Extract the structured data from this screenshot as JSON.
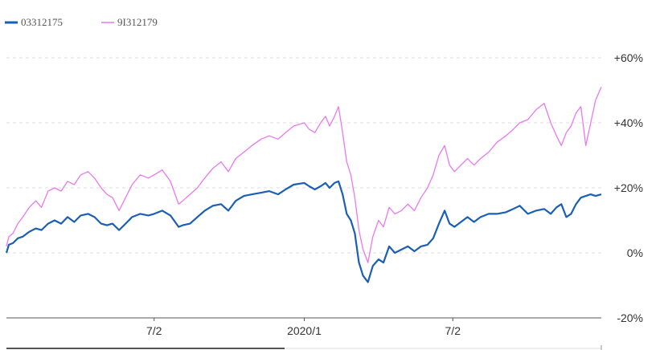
{
  "chart_data": {
    "type": "line",
    "title": "",
    "xlabel": "",
    "ylabel": "",
    "legend_position": "top-left",
    "grid": true,
    "y_unit": "percent",
    "ylim": [
      -20,
      60
    ],
    "y_ticks": [
      {
        "value": 60,
        "label": "+60%"
      },
      {
        "value": 40,
        "label": "+40%"
      },
      {
        "value": 20,
        "label": "+20%"
      },
      {
        "value": 0,
        "label": "0%"
      },
      {
        "value": -20,
        "label": "-20%"
      }
    ],
    "x_range": [
      "2019-01-02",
      "2020-12-31"
    ],
    "x_ticks": [
      {
        "date": "2019-07-02",
        "label": "7/2"
      },
      {
        "date": "2020-01-02",
        "label": "2020/1"
      },
      {
        "date": "2020-07-02",
        "label": "7/2"
      }
    ],
    "series": [
      {
        "name": "03312175",
        "color": "#1a5fb4",
        "points": [
          [
            "2019-01-02",
            0
          ],
          [
            "2019-01-05",
            2.5
          ],
          [
            "2019-01-10",
            3
          ],
          [
            "2019-01-16",
            4.5
          ],
          [
            "2019-01-22",
            5
          ],
          [
            "2019-01-30",
            6.5
          ],
          [
            "2019-02-07",
            7.5
          ],
          [
            "2019-02-14",
            7
          ],
          [
            "2019-02-22",
            9
          ],
          [
            "2019-03-02",
            10
          ],
          [
            "2019-03-10",
            9
          ],
          [
            "2019-03-18",
            11
          ],
          [
            "2019-03-26",
            9.5
          ],
          [
            "2019-04-03",
            11.5
          ],
          [
            "2019-04-12",
            12
          ],
          [
            "2019-04-20",
            11
          ],
          [
            "2019-04-28",
            9
          ],
          [
            "2019-05-05",
            8.5
          ],
          [
            "2019-05-12",
            9
          ],
          [
            "2019-05-20",
            7
          ],
          [
            "2019-05-28",
            9
          ],
          [
            "2019-06-05",
            11
          ],
          [
            "2019-06-15",
            12
          ],
          [
            "2019-06-25",
            11.5
          ],
          [
            "2019-07-02",
            12
          ],
          [
            "2019-07-12",
            13
          ],
          [
            "2019-07-22",
            11.5
          ],
          [
            "2019-08-01",
            8
          ],
          [
            "2019-08-06",
            8.5
          ],
          [
            "2019-08-15",
            9
          ],
          [
            "2019-08-24",
            11
          ],
          [
            "2019-09-02",
            13
          ],
          [
            "2019-09-12",
            14.5
          ],
          [
            "2019-09-22",
            15
          ],
          [
            "2019-10-01",
            13
          ],
          [
            "2019-10-10",
            16
          ],
          [
            "2019-10-20",
            17.5
          ],
          [
            "2019-10-30",
            18
          ],
          [
            "2019-11-10",
            18.5
          ],
          [
            "2019-11-20",
            19
          ],
          [
            "2019-12-01",
            18
          ],
          [
            "2019-12-10",
            19.5
          ],
          [
            "2019-12-20",
            21
          ],
          [
            "2020-01-02",
            21.5
          ],
          [
            "2020-01-08",
            20.5
          ],
          [
            "2020-01-15",
            19.5
          ],
          [
            "2020-01-22",
            20.5
          ],
          [
            "2020-01-28",
            21.5
          ],
          [
            "2020-02-02",
            20
          ],
          [
            "2020-02-08",
            21.5
          ],
          [
            "2020-02-13",
            22
          ],
          [
            "2020-02-18",
            18
          ],
          [
            "2020-02-23",
            12
          ],
          [
            "2020-02-28",
            10
          ],
          [
            "2020-03-04",
            6
          ],
          [
            "2020-03-09",
            -3
          ],
          [
            "2020-03-14",
            -7
          ],
          [
            "2020-03-20",
            -9
          ],
          [
            "2020-03-26",
            -4
          ],
          [
            "2020-04-02",
            -2
          ],
          [
            "2020-04-08",
            -3
          ],
          [
            "2020-04-15",
            2
          ],
          [
            "2020-04-22",
            0
          ],
          [
            "2020-04-30",
            1
          ],
          [
            "2020-05-08",
            2
          ],
          [
            "2020-05-16",
            0.5
          ],
          [
            "2020-05-24",
            2
          ],
          [
            "2020-06-01",
            2.5
          ],
          [
            "2020-06-08",
            4.5
          ],
          [
            "2020-06-15",
            9
          ],
          [
            "2020-06-22",
            13
          ],
          [
            "2020-06-28",
            9
          ],
          [
            "2020-07-04",
            8
          ],
          [
            "2020-07-12",
            9.5
          ],
          [
            "2020-07-20",
            11
          ],
          [
            "2020-07-28",
            9.5
          ],
          [
            "2020-08-05",
            11
          ],
          [
            "2020-08-15",
            12
          ],
          [
            "2020-08-25",
            12
          ],
          [
            "2020-09-05",
            12.5
          ],
          [
            "2020-09-14",
            13.5
          ],
          [
            "2020-09-22",
            14.5
          ],
          [
            "2020-10-02",
            12
          ],
          [
            "2020-10-12",
            13
          ],
          [
            "2020-10-22",
            13.5
          ],
          [
            "2020-10-30",
            12
          ],
          [
            "2020-11-06",
            14
          ],
          [
            "2020-11-12",
            15
          ],
          [
            "2020-11-18",
            11
          ],
          [
            "2020-11-24",
            12
          ],
          [
            "2020-11-30",
            15
          ],
          [
            "2020-12-06",
            17
          ],
          [
            "2020-12-12",
            17.5
          ],
          [
            "2020-12-18",
            18
          ],
          [
            "2020-12-24",
            17.5
          ],
          [
            "2020-12-31",
            18
          ]
        ]
      },
      {
        "name": "9I312179",
        "color": "#e879f0",
        "points": [
          [
            "2019-01-02",
            2
          ],
          [
            "2019-01-05",
            5
          ],
          [
            "2019-01-10",
            6
          ],
          [
            "2019-01-16",
            9
          ],
          [
            "2019-01-22",
            11
          ],
          [
            "2019-01-30",
            14
          ],
          [
            "2019-02-07",
            16
          ],
          [
            "2019-02-14",
            14
          ],
          [
            "2019-02-22",
            19
          ],
          [
            "2019-03-02",
            20
          ],
          [
            "2019-03-10",
            19
          ],
          [
            "2019-03-18",
            22
          ],
          [
            "2019-03-26",
            21
          ],
          [
            "2019-04-03",
            24
          ],
          [
            "2019-04-12",
            25
          ],
          [
            "2019-04-20",
            23
          ],
          [
            "2019-04-28",
            20
          ],
          [
            "2019-05-05",
            18
          ],
          [
            "2019-05-12",
            17
          ],
          [
            "2019-05-20",
            13
          ],
          [
            "2019-05-28",
            17
          ],
          [
            "2019-06-05",
            21
          ],
          [
            "2019-06-15",
            24
          ],
          [
            "2019-06-25",
            23
          ],
          [
            "2019-07-02",
            24
          ],
          [
            "2019-07-12",
            25.5
          ],
          [
            "2019-07-22",
            22
          ],
          [
            "2019-08-01",
            15
          ],
          [
            "2019-08-06",
            16
          ],
          [
            "2019-08-15",
            18
          ],
          [
            "2019-08-24",
            20
          ],
          [
            "2019-09-02",
            23
          ],
          [
            "2019-09-12",
            26
          ],
          [
            "2019-09-22",
            28
          ],
          [
            "2019-10-01",
            25
          ],
          [
            "2019-10-10",
            29
          ],
          [
            "2019-10-20",
            31
          ],
          [
            "2019-10-30",
            33
          ],
          [
            "2019-11-10",
            35
          ],
          [
            "2019-11-20",
            36
          ],
          [
            "2019-12-01",
            35
          ],
          [
            "2019-12-10",
            37
          ],
          [
            "2019-12-20",
            39
          ],
          [
            "2020-01-02",
            40
          ],
          [
            "2020-01-08",
            38
          ],
          [
            "2020-01-15",
            37
          ],
          [
            "2020-01-22",
            40
          ],
          [
            "2020-01-28",
            42
          ],
          [
            "2020-02-02",
            39
          ],
          [
            "2020-02-08",
            42
          ],
          [
            "2020-02-13",
            45
          ],
          [
            "2020-02-18",
            37
          ],
          [
            "2020-02-23",
            28
          ],
          [
            "2020-02-28",
            24
          ],
          [
            "2020-03-04",
            17
          ],
          [
            "2020-03-09",
            7
          ],
          [
            "2020-03-14",
            1
          ],
          [
            "2020-03-20",
            -3
          ],
          [
            "2020-03-26",
            5
          ],
          [
            "2020-04-02",
            10
          ],
          [
            "2020-04-08",
            8
          ],
          [
            "2020-04-15",
            14
          ],
          [
            "2020-04-22",
            12
          ],
          [
            "2020-04-30",
            13
          ],
          [
            "2020-05-08",
            15
          ],
          [
            "2020-05-16",
            13
          ],
          [
            "2020-05-24",
            17
          ],
          [
            "2020-06-01",
            20
          ],
          [
            "2020-06-08",
            24
          ],
          [
            "2020-06-15",
            30
          ],
          [
            "2020-06-22",
            33
          ],
          [
            "2020-06-28",
            27
          ],
          [
            "2020-07-04",
            25
          ],
          [
            "2020-07-12",
            27
          ],
          [
            "2020-07-20",
            29
          ],
          [
            "2020-07-28",
            27
          ],
          [
            "2020-08-05",
            29
          ],
          [
            "2020-08-15",
            31
          ],
          [
            "2020-08-25",
            34
          ],
          [
            "2020-09-05",
            36
          ],
          [
            "2020-09-14",
            38
          ],
          [
            "2020-09-22",
            40
          ],
          [
            "2020-10-02",
            41
          ],
          [
            "2020-10-12",
            44
          ],
          [
            "2020-10-22",
            46
          ],
          [
            "2020-10-30",
            40
          ],
          [
            "2020-11-06",
            36
          ],
          [
            "2020-11-12",
            33
          ],
          [
            "2020-11-18",
            37
          ],
          [
            "2020-11-24",
            39
          ],
          [
            "2020-11-30",
            43
          ],
          [
            "2020-12-06",
            45
          ],
          [
            "2020-12-12",
            33
          ],
          [
            "2020-12-18",
            40
          ],
          [
            "2020-12-24",
            47
          ],
          [
            "2020-12-31",
            51
          ]
        ]
      }
    ]
  }
}
